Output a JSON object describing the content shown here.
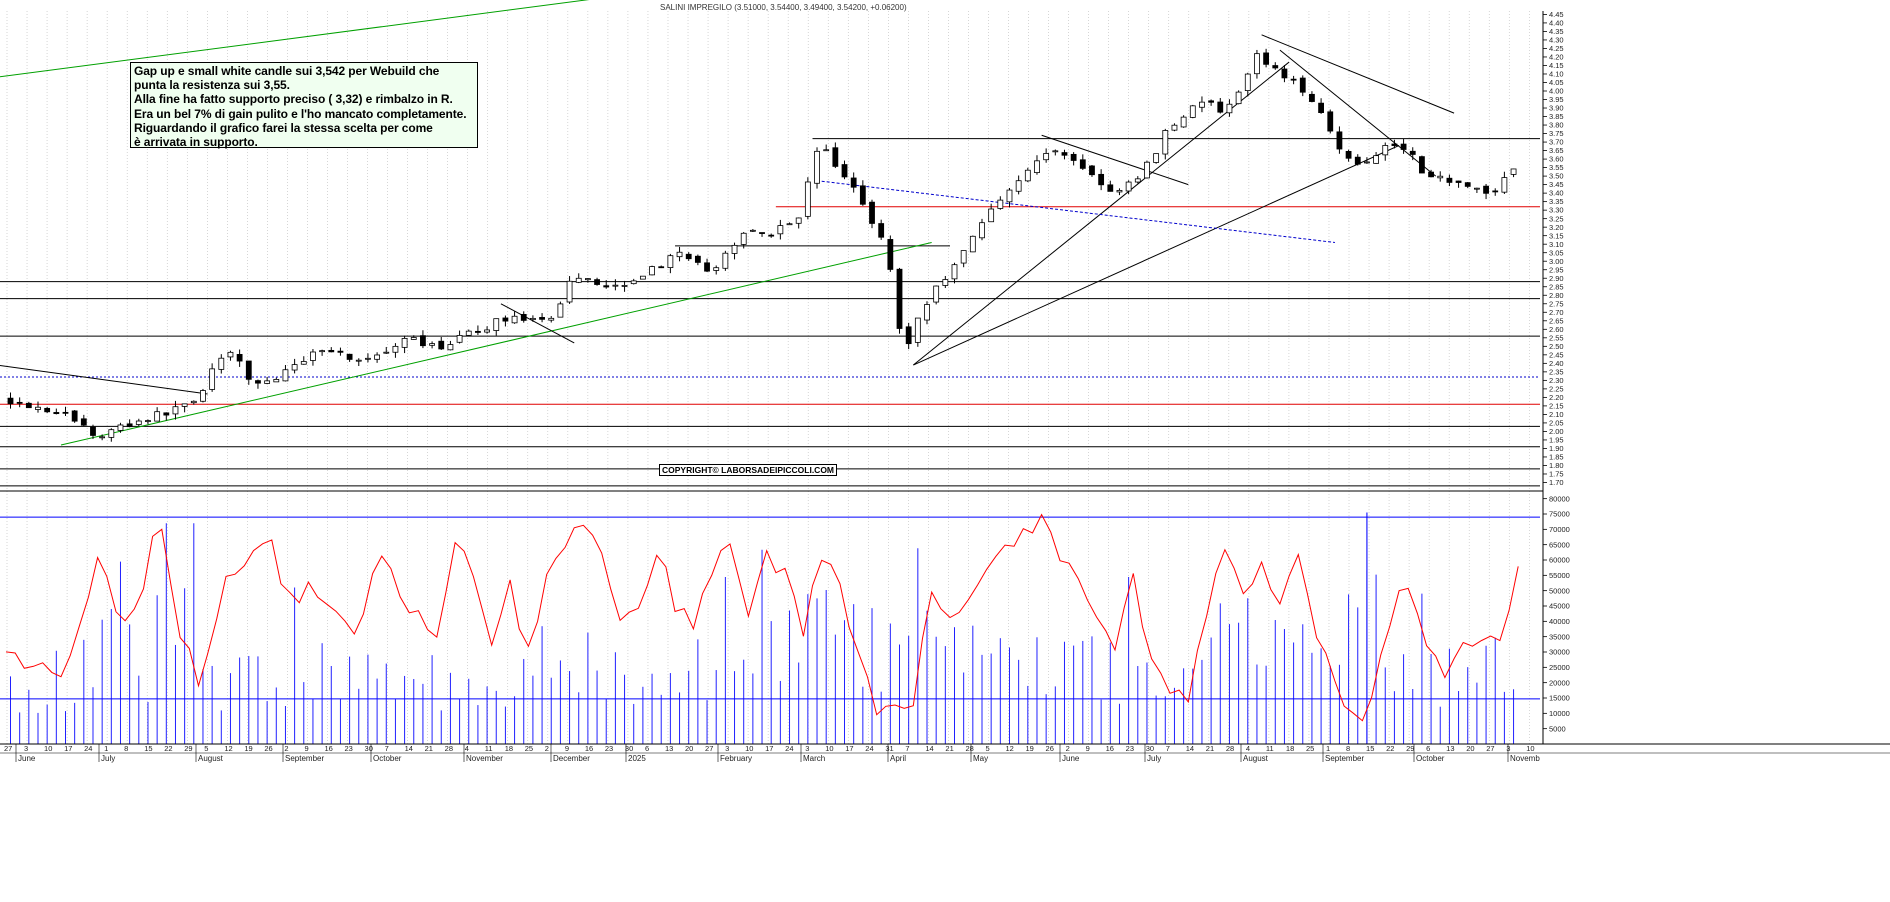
{
  "header": {
    "title": "SALINI IMPREGILO (3.51000, 3.54400, 3.49400, 3.54200, +0.06200)"
  },
  "annotation": {
    "lines": [
      "Gap up e small white candle sui 3,542 per Webuild che",
      "punta la resistenza sui 3,55.",
      "Alla fine ha fatto supporto preciso ( 3,32) e rimbalzo in R.",
      "Era un bel 7% di gain pulito e l'ho mancato completamente.",
      "Riguardando il grafico farei la stessa scelta per come",
      "è arrivata in supporto."
    ]
  },
  "copyright": "COPYRIGHT© LABORSADEIPICCOLI.COM",
  "colors": {
    "candle_outline": "#000000",
    "candle_up": "#ffffff",
    "candle_down": "#000000",
    "support_line": "#000000",
    "red_level": "#e00000",
    "green_trend": "#00a000",
    "dashed_blue": "#0000cc",
    "volume_bar": "#2020ff",
    "volume_oscillator": "#ff0000",
    "volume_band": "#0000ff",
    "grid": "#bbbbbb"
  },
  "chart_data": [
    {
      "type": "candlestick",
      "panel": "price",
      "title": "SALINI IMPREGILO (3.51000, 3.54400, 3.49400, 3.54200, +0.06200)",
      "last_bar": {
        "open": 3.51,
        "high": 3.544,
        "low": 3.494,
        "close": 3.542,
        "change": 0.062
      },
      "ylim": [
        1.65,
        4.47
      ],
      "y_ticks": [
        "1.70",
        "1.75",
        "1.80",
        "1.85",
        "1.90",
        "1.95",
        "2.00",
        "2.05",
        "2.10",
        "2.15",
        "2.20",
        "2.25",
        "2.30",
        "2.35",
        "2.40",
        "2.45",
        "2.50",
        "2.55",
        "2.60",
        "2.65",
        "2.70",
        "2.75",
        "2.80",
        "2.85",
        "2.90",
        "2.95",
        "3.00",
        "3.05",
        "3.10",
        "3.15",
        "3.20",
        "3.25",
        "3.30",
        "3.35",
        "3.40",
        "3.45",
        "3.50",
        "3.55",
        "3.60",
        "3.65",
        "3.70",
        "3.75",
        "3.80",
        "3.85",
        "3.90",
        "3.95",
        "4.00",
        "4.05",
        "4.10",
        "4.15",
        "4.20",
        "4.25",
        "4.30",
        "4.35",
        "4.40",
        "4.45"
      ],
      "price_path": [
        [
          0,
          2.19
        ],
        [
          3,
          2.15
        ],
        [
          6,
          2.11
        ],
        [
          8,
          2.05
        ],
        [
          10,
          1.96
        ],
        [
          12,
          2.02
        ],
        [
          15,
          2.07
        ],
        [
          18,
          2.12
        ],
        [
          21,
          2.2
        ],
        [
          23,
          2.42
        ],
        [
          25,
          2.45
        ],
        [
          26,
          2.35
        ],
        [
          27,
          2.28
        ],
        [
          29,
          2.3
        ],
        [
          31,
          2.36
        ],
        [
          33,
          2.45
        ],
        [
          35,
          2.5
        ],
        [
          37,
          2.44
        ],
        [
          39,
          2.42
        ],
        [
          42,
          2.46
        ],
        [
          44,
          2.55
        ],
        [
          46,
          2.49
        ],
        [
          48,
          2.51
        ],
        [
          50,
          2.56
        ],
        [
          52,
          2.6
        ],
        [
          54,
          2.66
        ],
        [
          56,
          2.68
        ],
        [
          58,
          2.63
        ],
        [
          60,
          2.66
        ],
        [
          61,
          2.87
        ],
        [
          63,
          2.92
        ],
        [
          65,
          2.86
        ],
        [
          67,
          2.86
        ],
        [
          69,
          2.92
        ],
        [
          71,
          2.96
        ],
        [
          73,
          3.05
        ],
        [
          75,
          2.98
        ],
        [
          77,
          2.95
        ],
        [
          79,
          3.05
        ],
        [
          81,
          3.2
        ],
        [
          83,
          3.16
        ],
        [
          85,
          3.2
        ],
        [
          87,
          3.3
        ],
        [
          88,
          3.6
        ],
        [
          89,
          3.7
        ],
        [
          90,
          3.58
        ],
        [
          92,
          3.48
        ],
        [
          94,
          3.28
        ],
        [
          96,
          3.12
        ],
        [
          97,
          2.78
        ],
        [
          98,
          2.42
        ],
        [
          99,
          2.62
        ],
        [
          101,
          2.8
        ],
        [
          103,
          2.95
        ],
        [
          105,
          3.1
        ],
        [
          107,
          3.27
        ],
        [
          109,
          3.41
        ],
        [
          111,
          3.5
        ],
        [
          113,
          3.62
        ],
        [
          115,
          3.65
        ],
        [
          117,
          3.58
        ],
        [
          119,
          3.48
        ],
        [
          121,
          3.38
        ],
        [
          123,
          3.47
        ],
        [
          125,
          3.6
        ],
        [
          127,
          3.8
        ],
        [
          129,
          3.88
        ],
        [
          131,
          3.95
        ],
        [
          133,
          3.86
        ],
        [
          135,
          4.02
        ],
        [
          136,
          4.22
        ],
        [
          137,
          4.18
        ],
        [
          139,
          4.12
        ],
        [
          141,
          4.02
        ],
        [
          143,
          3.94
        ],
        [
          145,
          3.72
        ],
        [
          147,
          3.55
        ],
        [
          149,
          3.62
        ],
        [
          151,
          3.7
        ],
        [
          153,
          3.66
        ],
        [
          155,
          3.5
        ],
        [
          157,
          3.48
        ],
        [
          159,
          3.47
        ],
        [
          161,
          3.42
        ],
        [
          162,
          3.37
        ],
        [
          163,
          3.45
        ],
        [
          164,
          3.542
        ]
      ],
      "horizontal_levels": [
        {
          "value": 3.72,
          "color": "black",
          "start": 88
        },
        {
          "value": 3.32,
          "color": "red",
          "start": 84
        },
        {
          "value": 3.09,
          "color": "black",
          "start": 73,
          "end": 103
        },
        {
          "value": 2.88,
          "color": "black",
          "start": 0
        },
        {
          "value": 2.78,
          "color": "black",
          "start": 0
        },
        {
          "value": 2.56,
          "color": "black",
          "start": 0
        },
        {
          "value": 2.32,
          "color": "blue-dashed",
          "start": 0
        },
        {
          "value": 2.16,
          "color": "red",
          "start": 0
        },
        {
          "value": 2.03,
          "color": "black",
          "start": 0
        },
        {
          "value": 1.91,
          "color": "black",
          "start": 0
        },
        {
          "value": 1.78,
          "color": "black",
          "start": 0
        },
        {
          "value": 1.68,
          "color": "black",
          "start": 0
        }
      ],
      "trend_lines": [
        {
          "color": "green",
          "from": [
            -4,
            4.06
          ],
          "to": [
            81,
            4.66
          ]
        },
        {
          "color": "green",
          "from": [
            6,
            1.92
          ],
          "to": [
            101,
            3.11
          ]
        },
        {
          "color": "black",
          "from": [
            99,
            2.39
          ],
          "to": [
            140,
            4.17
          ]
        },
        {
          "color": "black",
          "from": [
            99,
            2.39
          ],
          "to": [
            152,
            3.68
          ]
        },
        {
          "color": "black",
          "from": [
            137,
            4.33
          ],
          "to": [
            158,
            3.87
          ]
        },
        {
          "color": "black",
          "from": [
            139,
            4.24
          ],
          "to": [
            156,
            3.5
          ]
        },
        {
          "color": "black",
          "from": [
            113,
            3.74
          ],
          "to": [
            129,
            3.45
          ]
        },
        {
          "color": "black",
          "from": [
            54,
            2.75
          ],
          "to": [
            62,
            2.52
          ]
        },
        {
          "color": "black",
          "from": [
            -1,
            2.39
          ],
          "to": [
            22,
            2.22
          ]
        },
        {
          "color": "blue-dashed",
          "from": [
            89,
            3.47
          ],
          "to": [
            145,
            3.11
          ]
        }
      ],
      "date_ticks": [
        "27",
        "3",
        "10",
        "17",
        "24",
        "1",
        "8",
        "15",
        "22",
        "29",
        "5",
        "12",
        "19",
        "26",
        "2",
        "9",
        "16",
        "23",
        "30",
        "7",
        "14",
        "21",
        "28",
        "4",
        "11",
        "18",
        "25",
        "2",
        "9",
        "16",
        "23",
        "30",
        "6",
        "13",
        "20",
        "27",
        "3",
        "10",
        "17",
        "24",
        "3",
        "10",
        "17",
        "24",
        "31",
        "7",
        "14",
        "21",
        "28",
        "5",
        "12",
        "19",
        "26",
        "2",
        "9",
        "16",
        "23",
        "30",
        "7",
        "14",
        "21",
        "28",
        "4",
        "11",
        "18",
        "25",
        "1",
        "8",
        "15",
        "22",
        "29",
        "6",
        "13",
        "20",
        "27",
        "3",
        "10"
      ],
      "months": [
        "June",
        "July",
        "August",
        "September",
        "October",
        "November",
        "December",
        "2025",
        "February",
        "March",
        "April",
        "May",
        "June",
        "July",
        "August",
        "September",
        "October",
        "Novemb"
      ]
    },
    {
      "type": "bar",
      "panel": "volume",
      "series": [
        {
          "name": "",
          "kind": "bar",
          "color": "#2020ff"
        },
        {
          "name": "",
          "kind": "line",
          "color": "#ff0000"
        }
      ],
      "volume_hint": [
        [
          0,
          21000
        ],
        [
          5,
          16000
        ],
        [
          9,
          33000
        ],
        [
          11,
          65000
        ],
        [
          15,
          20000
        ],
        [
          17,
          72000
        ],
        [
          22,
          24000
        ],
        [
          28,
          26000
        ],
        [
          35,
          28000
        ],
        [
          42,
          30000
        ],
        [
          48,
          23000
        ],
        [
          54,
          25000
        ],
        [
          57,
          32000
        ],
        [
          62,
          36000
        ],
        [
          68,
          26000
        ],
        [
          74,
          30000
        ],
        [
          80,
          28000
        ],
        [
          86,
          44000
        ],
        [
          88,
          62000
        ],
        [
          91,
          45000
        ],
        [
          96,
          34000
        ],
        [
          98,
          58000
        ],
        [
          103,
          40000
        ],
        [
          108,
          36000
        ],
        [
          113,
          33000
        ],
        [
          118,
          30000
        ],
        [
          124,
          28000
        ],
        [
          129,
          26000
        ],
        [
          132,
          58000
        ],
        [
          137,
          45000
        ],
        [
          144,
          30000
        ],
        [
          148,
          75000
        ],
        [
          152,
          25000
        ],
        [
          157,
          27000
        ],
        [
          162,
          34000
        ],
        [
          164,
          35000
        ]
      ],
      "oscillator_path": [
        [
          0,
          30000
        ],
        [
          2,
          26000
        ],
        [
          4,
          24000
        ],
        [
          6,
          20000
        ],
        [
          8,
          36000
        ],
        [
          10,
          60000
        ],
        [
          12,
          44000
        ],
        [
          14,
          43000
        ],
        [
          16,
          65000
        ],
        [
          17,
          71000
        ],
        [
          19,
          38000
        ],
        [
          21,
          22000
        ],
        [
          24,
          52000
        ],
        [
          27,
          62000
        ],
        [
          29,
          65000
        ],
        [
          31,
          46000
        ],
        [
          33,
          52000
        ],
        [
          36,
          40000
        ],
        [
          38,
          35000
        ],
        [
          41,
          63000
        ],
        [
          43,
          50000
        ],
        [
          45,
          42000
        ],
        [
          47,
          38000
        ],
        [
          49,
          64000
        ],
        [
          51,
          57000
        ],
        [
          53,
          32000
        ],
        [
          55,
          52000
        ],
        [
          57,
          29000
        ],
        [
          59,
          54000
        ],
        [
          60,
          58000
        ],
        [
          62,
          71000
        ],
        [
          63,
          74000
        ],
        [
          65,
          62000
        ],
        [
          67,
          38000
        ],
        [
          69,
          42000
        ],
        [
          71,
          63000
        ],
        [
          73,
          46000
        ],
        [
          75,
          40000
        ],
        [
          77,
          58000
        ],
        [
          79,
          65000
        ],
        [
          81,
          42000
        ],
        [
          83,
          62000
        ],
        [
          85,
          55000
        ],
        [
          87,
          35000
        ],
        [
          89,
          62000
        ],
        [
          91,
          50000
        ],
        [
          93,
          30000
        ],
        [
          95,
          12000
        ],
        [
          97,
          14000
        ],
        [
          99,
          10000
        ],
        [
          101,
          52000
        ],
        [
          103,
          38000
        ],
        [
          105,
          44000
        ],
        [
          107,
          58000
        ],
        [
          109,
          65000
        ],
        [
          111,
          70000
        ],
        [
          113,
          73000
        ],
        [
          115,
          62000
        ],
        [
          117,
          53000
        ],
        [
          119,
          42000
        ],
        [
          121,
          32000
        ],
        [
          123,
          53000
        ],
        [
          125,
          25000
        ],
        [
          127,
          15000
        ],
        [
          129,
          16000
        ],
        [
          131,
          42000
        ],
        [
          133,
          66000
        ],
        [
          135,
          48000
        ],
        [
          137,
          62000
        ],
        [
          139,
          45000
        ],
        [
          141,
          62000
        ],
        [
          143,
          38000
        ],
        [
          145,
          20000
        ],
        [
          147,
          7000
        ],
        [
          149,
          12000
        ],
        [
          151,
          42000
        ],
        [
          153,
          52000
        ],
        [
          155,
          30000
        ],
        [
          157,
          22000
        ],
        [
          159,
          30000
        ],
        [
          161,
          33000
        ],
        [
          163,
          36000
        ],
        [
          165,
          58000
        ]
      ],
      "ylim": [
        0,
        82500
      ],
      "y_ticks": [
        "5000",
        "10000",
        "15000",
        "20000",
        "25000",
        "30000",
        "35000",
        "40000",
        "45000",
        "50000",
        "55000",
        "60000",
        "65000",
        "70000",
        "75000",
        "80000"
      ],
      "bands": [
        74000,
        14700
      ],
      "marker": {
        "x": 148,
        "value": 75500
      }
    }
  ]
}
